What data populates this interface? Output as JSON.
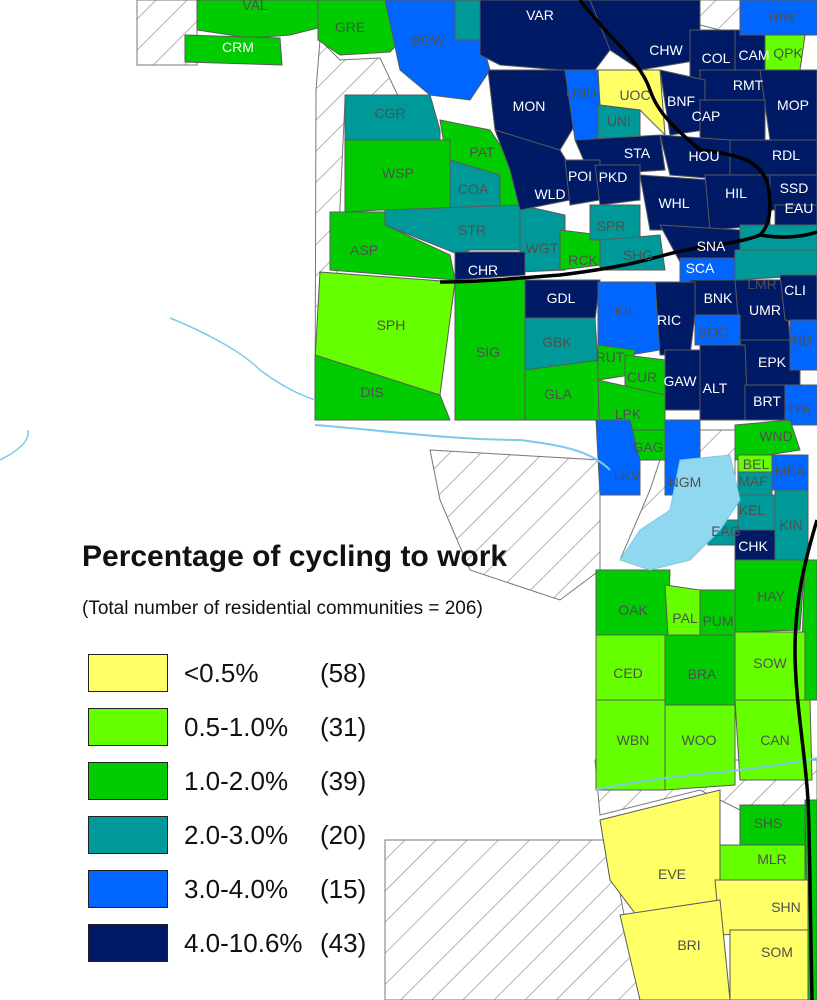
{
  "legend": {
    "title": "Percentage of cycling to work",
    "subtitle": "(Total number of residential communities = 206)",
    "classes": [
      {
        "range": "<0.5%",
        "count": "(58)",
        "color": "#ffff66"
      },
      {
        "range": "0.5-1.0%",
        "count": "(31)",
        "color": "#66ff00"
      },
      {
        "range": "1.0-2.0%",
        "count": "(39)",
        "color": "#00cc00"
      },
      {
        "range": "2.0-3.0%",
        "count": "(20)",
        "color": "#009999"
      },
      {
        "range": "3.0-4.0%",
        "count": "(15)",
        "color": "#0066ff"
      },
      {
        "range": "4.0-10.6%",
        "count": "(43)",
        "color": "#001a66"
      }
    ]
  },
  "communities": {
    "VAL": "VAL",
    "CRM": "CRM",
    "GRE": "GRE",
    "BOW": "BOW",
    "VAR": "VAR",
    "CHW": "CHW",
    "COL": "COL",
    "CAM": "CAM",
    "QPK": "QPK",
    "HIW": "HIW",
    "RMT": "RMT",
    "MOP": "MOP",
    "CAP": "CAP",
    "BNF": "BNF",
    "UOC": "UOC",
    "UND": "UND",
    "MON": "MON",
    "UNI": "UNI",
    "CGR": "CGR",
    "PAT": "PAT",
    "STA": "STA",
    "HOU": "HOU",
    "RDL": "RDL",
    "WSP": "WSP",
    "COA": "COA",
    "WLD": "WLD",
    "POI": "POI",
    "PKD": "PKD",
    "WHL": "WHL",
    "HIL": "HIL",
    "SSD": "SSD",
    "EAU": "EAU",
    "STR": "STR",
    "SPR": "SPR",
    "ASP": "ASP",
    "WGT": "WGT",
    "RCK": "RCK",
    "SHG": "SHG",
    "SNA": "SNA",
    "CHR": "CHR",
    "SCA": "SCA",
    "GDL": "GDL",
    "BNK": "BNK",
    "CLI": "CLI",
    "UMR": "UMR",
    "SPH": "SPH",
    "KIL": "KIL",
    "RIC": "RIC",
    "SOC": "SOC",
    "GBK": "GBK",
    "SIG": "SIG",
    "RUT": "RUT",
    "GAW": "GAW",
    "EPK": "EPK",
    "CUR": "CUR",
    "ALT": "ALT",
    "DIS": "DIS",
    "GLA": "GLA",
    "BRT": "BRT",
    "LPK": "LPK",
    "WND": "WND",
    "GAG": "GAG",
    "BEL": "BEL",
    "MEA": "MEA",
    "MAF": "MAF",
    "LKV": "LKV",
    "NGM": "NGM",
    "KEL": "KEL",
    "KIN": "KIN",
    "EAG": "EAG",
    "CHK": "CHK",
    "HAY": "HAY",
    "OAK": "OAK",
    "PAL": "PAL",
    "PUM": "PUM",
    "SOW": "SOW",
    "CED": "CED",
    "BRA": "BRA",
    "WBN": "WBN",
    "WOO": "WOO",
    "CAN": "CAN",
    "SHS": "SHS",
    "MLR": "MLR",
    "EVE": "EVE",
    "SHN": "SHN",
    "BRI": "BRI",
    "SOM": "SOM",
    "LMR": "LMR",
    "RID": "RID",
    "RYA": "RYA"
  }
}
